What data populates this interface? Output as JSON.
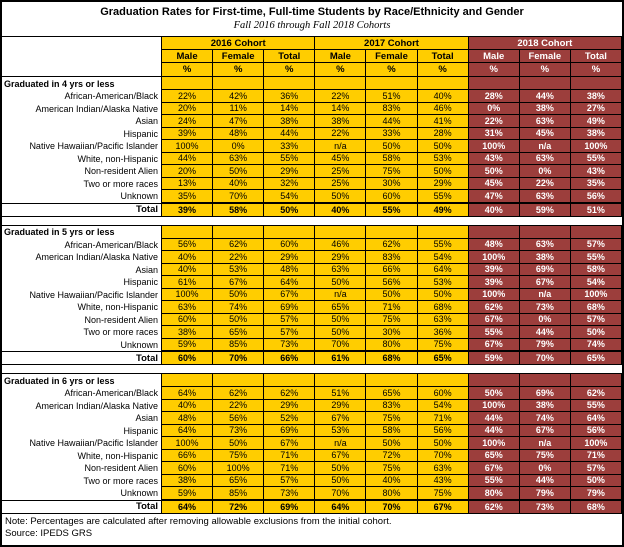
{
  "title": "Graduation Rates for First-time, Full-time Students by Race/Ethnicity and Gender",
  "subtitle": "Fall 2016 through Fall 2018 Cohorts",
  "colors": {
    "gold": "#FFCD00",
    "maroon": "#9C3E3C",
    "border": "#000000",
    "text_on_gold": "#000000",
    "text_on_maroon": "#FFFFFF"
  },
  "columns": {
    "genders": [
      "Male",
      "Female",
      "Total"
    ],
    "unit": "%"
  },
  "cohorts": [
    {
      "label": "2016 Cohort",
      "theme": "gold"
    },
    {
      "label": "2017 Cohort",
      "theme": "gold"
    },
    {
      "label": "2018 Cohort",
      "theme": "maroon"
    }
  ],
  "sections": [
    {
      "label": "Graduated in 4 yrs or less",
      "rows": [
        {
          "label": "African-American/Black",
          "values": [
            "22%",
            "42%",
            "36%",
            "22%",
            "51%",
            "40%",
            "28%",
            "44%",
            "38%"
          ]
        },
        {
          "label": "American Indian/Alaska Native",
          "values": [
            "20%",
            "11%",
            "14%",
            "14%",
            "83%",
            "46%",
            "0%",
            "38%",
            "27%"
          ]
        },
        {
          "label": "Asian",
          "values": [
            "24%",
            "47%",
            "38%",
            "38%",
            "44%",
            "41%",
            "22%",
            "63%",
            "49%"
          ]
        },
        {
          "label": "Hispanic",
          "values": [
            "39%",
            "48%",
            "44%",
            "22%",
            "33%",
            "28%",
            "31%",
            "45%",
            "38%"
          ]
        },
        {
          "label": "Native Hawaiian/Pacific Islander",
          "values": [
            "100%",
            "0%",
            "33%",
            "n/a",
            "50%",
            "50%",
            "100%",
            "n/a",
            "100%"
          ]
        },
        {
          "label": "White, non-Hispanic",
          "values": [
            "44%",
            "63%",
            "55%",
            "45%",
            "58%",
            "53%",
            "43%",
            "63%",
            "55%"
          ]
        },
        {
          "label": "Non-resident Alien",
          "values": [
            "20%",
            "50%",
            "29%",
            "25%",
            "75%",
            "50%",
            "50%",
            "0%",
            "43%"
          ]
        },
        {
          "label": "Two or more races",
          "values": [
            "13%",
            "40%",
            "32%",
            "25%",
            "30%",
            "29%",
            "45%",
            "22%",
            "35%"
          ]
        },
        {
          "label": "Unknown",
          "values": [
            "35%",
            "70%",
            "54%",
            "50%",
            "60%",
            "55%",
            "47%",
            "63%",
            "56%"
          ]
        }
      ],
      "total": {
        "label": "Total",
        "values": [
          "39%",
          "58%",
          "50%",
          "40%",
          "55%",
          "49%",
          "40%",
          "59%",
          "51%"
        ]
      }
    },
    {
      "label": "Graduated in 5 yrs or less",
      "rows": [
        {
          "label": "African-American/Black",
          "values": [
            "56%",
            "62%",
            "60%",
            "46%",
            "62%",
            "55%",
            "48%",
            "63%",
            "57%"
          ]
        },
        {
          "label": "American Indian/Alaska Native",
          "values": [
            "40%",
            "22%",
            "29%",
            "29%",
            "83%",
            "54%",
            "100%",
            "38%",
            "55%"
          ]
        },
        {
          "label": "Asian",
          "values": [
            "40%",
            "53%",
            "48%",
            "63%",
            "66%",
            "64%",
            "39%",
            "69%",
            "58%"
          ]
        },
        {
          "label": "Hispanic",
          "values": [
            "61%",
            "67%",
            "64%",
            "50%",
            "56%",
            "53%",
            "39%",
            "67%",
            "54%"
          ]
        },
        {
          "label": "Native Hawaiian/Pacific Islander",
          "values": [
            "100%",
            "50%",
            "67%",
            "n/a",
            "50%",
            "50%",
            "100%",
            "n/a",
            "100%"
          ]
        },
        {
          "label": "White, non-Hispanic",
          "values": [
            "63%",
            "74%",
            "69%",
            "65%",
            "71%",
            "68%",
            "62%",
            "73%",
            "68%"
          ]
        },
        {
          "label": "Non-resident Alien",
          "values": [
            "60%",
            "50%",
            "57%",
            "50%",
            "75%",
            "63%",
            "67%",
            "0%",
            "57%"
          ]
        },
        {
          "label": "Two or more races",
          "values": [
            "38%",
            "65%",
            "57%",
            "50%",
            "30%",
            "36%",
            "55%",
            "44%",
            "50%"
          ]
        },
        {
          "label": "Unknown",
          "values": [
            "59%",
            "85%",
            "73%",
            "70%",
            "80%",
            "75%",
            "67%",
            "79%",
            "74%"
          ]
        }
      ],
      "total": {
        "label": "Total",
        "values": [
          "60%",
          "70%",
          "66%",
          "61%",
          "68%",
          "65%",
          "59%",
          "70%",
          "65%"
        ]
      }
    },
    {
      "label": "Graduated in 6 yrs or less",
      "rows": [
        {
          "label": "African-American/Black",
          "values": [
            "64%",
            "62%",
            "62%",
            "51%",
            "65%",
            "60%",
            "50%",
            "69%",
            "62%"
          ]
        },
        {
          "label": "American Indian/Alaska Native",
          "values": [
            "40%",
            "22%",
            "29%",
            "29%",
            "83%",
            "54%",
            "100%",
            "38%",
            "55%"
          ]
        },
        {
          "label": "Asian",
          "values": [
            "48%",
            "56%",
            "52%",
            "67%",
            "75%",
            "71%",
            "44%",
            "74%",
            "64%"
          ]
        },
        {
          "label": "Hispanic",
          "values": [
            "64%",
            "73%",
            "69%",
            "53%",
            "58%",
            "56%",
            "44%",
            "67%",
            "56%"
          ]
        },
        {
          "label": "Native Hawaiian/Pacific Islander",
          "values": [
            "100%",
            "50%",
            "67%",
            "n/a",
            "50%",
            "50%",
            "100%",
            "n/a",
            "100%"
          ]
        },
        {
          "label": "White, non-Hispanic",
          "values": [
            "66%",
            "75%",
            "71%",
            "67%",
            "72%",
            "70%",
            "65%",
            "75%",
            "71%"
          ]
        },
        {
          "label": "Non-resident Alien",
          "values": [
            "60%",
            "100%",
            "71%",
            "50%",
            "75%",
            "63%",
            "67%",
            "0%",
            "57%"
          ]
        },
        {
          "label": "Two or more races",
          "values": [
            "38%",
            "65%",
            "57%",
            "50%",
            "40%",
            "43%",
            "55%",
            "44%",
            "50%"
          ]
        },
        {
          "label": "Unknown",
          "values": [
            "59%",
            "85%",
            "73%",
            "70%",
            "80%",
            "75%",
            "80%",
            "79%",
            "79%"
          ]
        }
      ],
      "total": {
        "label": "Total",
        "values": [
          "64%",
          "72%",
          "69%",
          "64%",
          "70%",
          "67%",
          "62%",
          "73%",
          "68%"
        ]
      }
    }
  ],
  "footer": {
    "note": "Note: Percentages are calculated after removing allowable exclusions from the initial cohort.",
    "source": "Source: IPEDS GRS"
  }
}
